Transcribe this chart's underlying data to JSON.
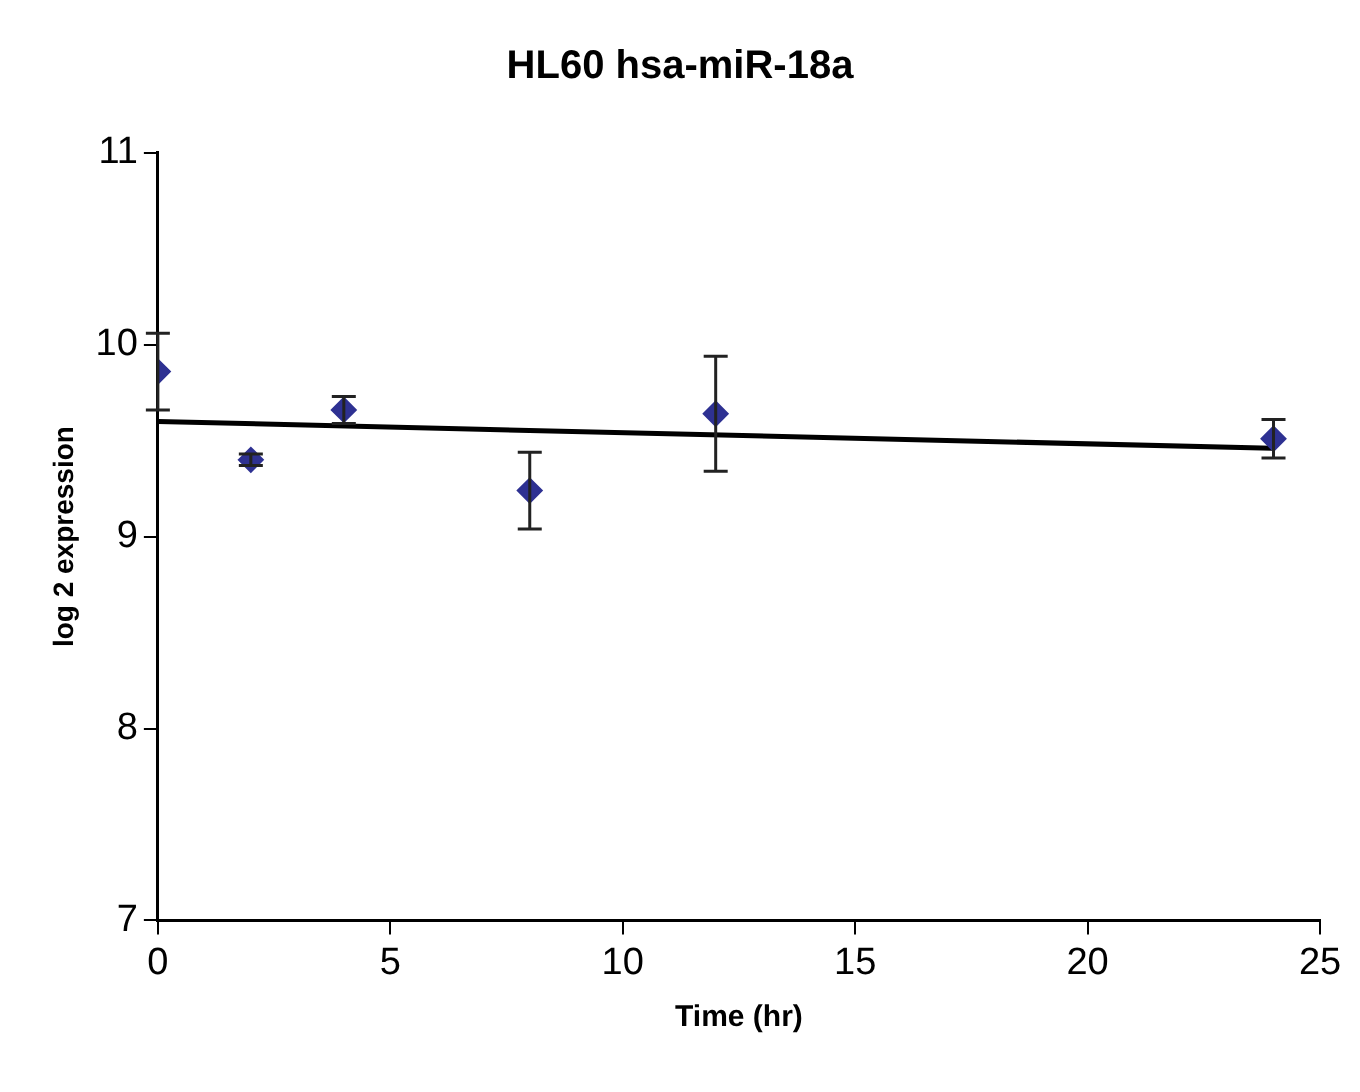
{
  "chart_data": {
    "type": "scatter",
    "title": "HL60 hsa-miR-18a",
    "xlabel": "Time (hr)",
    "ylabel": "log 2 expression",
    "xlim": [
      0,
      25
    ],
    "xticks": [
      0,
      5,
      10,
      15,
      20,
      25
    ],
    "ylim": [
      7,
      11
    ],
    "yticks": [
      7,
      8,
      9,
      10,
      11
    ],
    "grid": false,
    "legend": false,
    "series": [
      {
        "color": "#2e3192",
        "marker": "diamond",
        "x": [
          0,
          2,
          4,
          8,
          12,
          24
        ],
        "values": [
          9.86,
          9.4,
          9.66,
          9.24,
          9.64,
          9.51
        ],
        "errors": [
          0.2,
          0.03,
          0.07,
          0.2,
          0.3,
          0.1
        ]
      },
      {
        "type": "line",
        "color": "#000000",
        "marker": "none",
        "line_style": "solid",
        "x": [
          0,
          24
        ],
        "values": [
          9.6,
          9.46
        ]
      }
    ]
  }
}
